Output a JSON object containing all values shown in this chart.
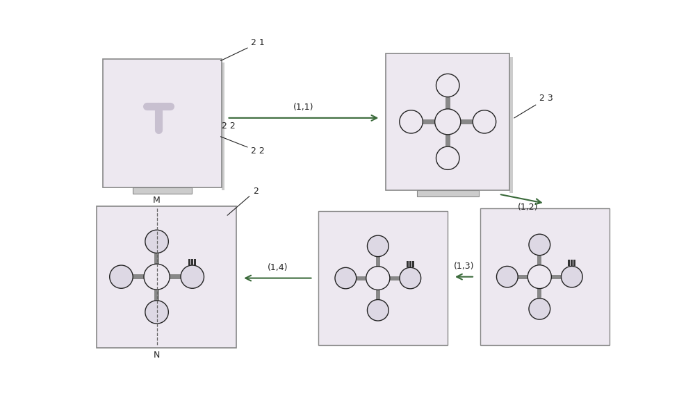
{
  "bg_color": "#ffffff",
  "paper_fill": "#ede8f0",
  "paper_edge": "#888888",
  "channel_color": "#888888",
  "circle_fill": "#ede8f0",
  "circle_fill_shaded": "#ddd8e4",
  "circle_edge": "#222222",
  "arrow_color": "#3a6a3a",
  "label_color": "#222222",
  "dashed_line_color": "#555555",
  "electrode_color": "#333333",
  "tab_color": "#cccccc",
  "step1_label": "(1,1)",
  "step2_label": "(1,2)",
  "step3_label": "(1,3)",
  "step4_label": "(1,4)",
  "panel1_label_top": "2 1",
  "panel1_label_bottom": "2 2",
  "panel2_label": "2 3",
  "panel_final_label_top": "M",
  "panel_final_label_bottom": "N",
  "panel_final_label_num": "2"
}
